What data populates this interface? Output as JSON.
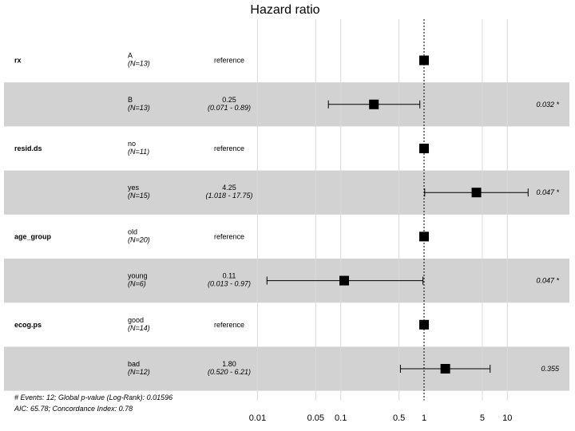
{
  "chart_data": {
    "type": "forest",
    "title": "Hazard ratio",
    "x_scale": "log",
    "xlim": [
      0.01,
      10
    ],
    "x_ticks": [
      {
        "value": 0.01,
        "label": "0.01"
      },
      {
        "value": 0.05,
        "label": "0.05"
      },
      {
        "value": 0.1,
        "label": "0.1"
      },
      {
        "value": 0.5,
        "label": "0.5"
      },
      {
        "value": 1,
        "label": "1"
      },
      {
        "value": 5,
        "label": "5"
      },
      {
        "value": 10,
        "label": "10"
      }
    ],
    "reference_line": 1,
    "rows": [
      {
        "variable": "rx",
        "level": "A",
        "n": "(N=13)",
        "hr": 1,
        "lower": null,
        "upper": null,
        "hr_label": "reference",
        "ci_label": "",
        "p_label": "",
        "shaded": false
      },
      {
        "variable": "",
        "level": "B",
        "n": "(N=13)",
        "hr": 0.25,
        "lower": 0.071,
        "upper": 0.89,
        "hr_label": "0.25",
        "ci_label": "(0.071 -  0.89)",
        "p_label": "0.032 *",
        "shaded": true
      },
      {
        "variable": "resid.ds",
        "level": "no",
        "n": "(N=11)",
        "hr": 1,
        "lower": null,
        "upper": null,
        "hr_label": "reference",
        "ci_label": "",
        "p_label": "",
        "shaded": false
      },
      {
        "variable": "",
        "level": "yes",
        "n": "(N=15)",
        "hr": 4.25,
        "lower": 1.018,
        "upper": 17.75,
        "hr_label": "4.25",
        "ci_label": "(1.018 - 17.75)",
        "p_label": "0.047 *",
        "shaded": true
      },
      {
        "variable": "age_group",
        "level": "old",
        "n": "(N=20)",
        "hr": 1,
        "lower": null,
        "upper": null,
        "hr_label": "reference",
        "ci_label": "",
        "p_label": "",
        "shaded": false
      },
      {
        "variable": "",
        "level": "young",
        "n": "(N=6)",
        "hr": 0.11,
        "lower": 0.013,
        "upper": 0.97,
        "hr_label": "0.11",
        "ci_label": "(0.013 -  0.97)",
        "p_label": "0.047 *",
        "shaded": true
      },
      {
        "variable": "ecog.ps",
        "level": "good",
        "n": "(N=14)",
        "hr": 1,
        "lower": null,
        "upper": null,
        "hr_label": "reference",
        "ci_label": "",
        "p_label": "",
        "shaded": false
      },
      {
        "variable": "",
        "level": "bad",
        "n": "(N=12)",
        "hr": 1.8,
        "lower": 0.52,
        "upper": 6.21,
        "hr_label": "1.80",
        "ci_label": "(0.520 -  6.21)",
        "p_label": "0.355",
        "shaded": true
      }
    ],
    "footnote_lines": [
      "# Events: 12; Global p-value (Log-Rank): 0.01596",
      "AIC: 65.78; Concordance Index: 0.78"
    ],
    "colors": {
      "shaded_row": "#d2d2d2",
      "gridline": "#d9d9d9",
      "marker": "#000000"
    }
  }
}
